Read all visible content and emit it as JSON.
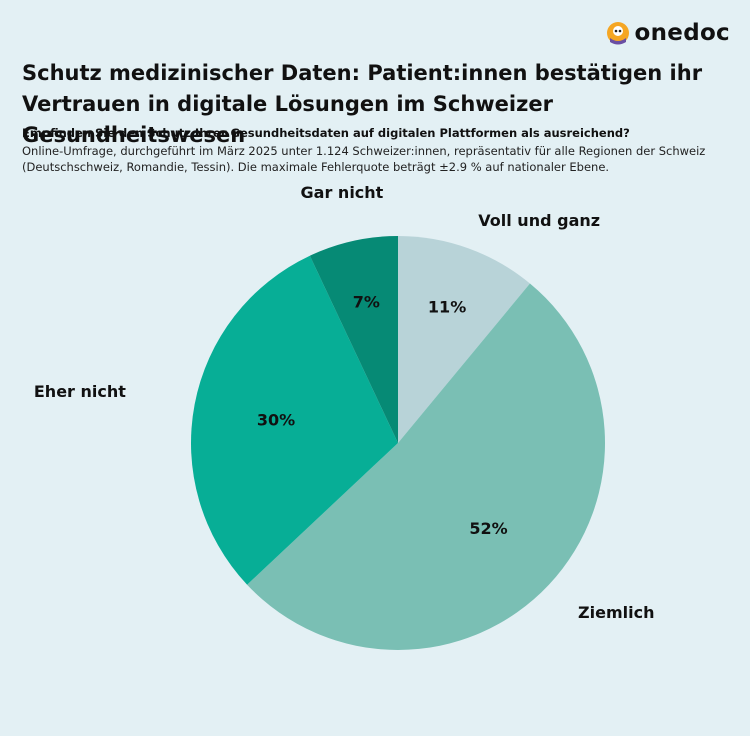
{
  "brand": {
    "name": "onedoc",
    "icon": "onedoc-mascot-icon",
    "colors": {
      "orange": "#f5a623",
      "purple": "#6a4fa3"
    }
  },
  "title": "Schutz medizinischer Daten: Patient:innen bestätigen ihr Vertrauen in digitale Lösungen im Schweizer Gesundheitswesen",
  "question": "Empfinden Sie den Schutz Ihrer Gesundheitsdaten auf digitalen Plattformen als ausreichend?",
  "note": "Online-Umfrage, durchgeführt im März 2025 unter 1.124 Schweizer:innen, repräsentativ für alle Regionen der Schweiz (Deutschschweiz, Romandie, Tessin). Die maximale Fehlerquote beträgt ±2.9 % auf nationaler Ebene.",
  "chart_data": {
    "type": "pie",
    "slices": [
      {
        "label": "Voll und ganz",
        "value": 11,
        "value_label": "11%",
        "color": "#b8d3d8"
      },
      {
        "label": "Ziemlich",
        "value": 52,
        "value_label": "52%",
        "color": "#7abfb4"
      },
      {
        "label": "Eher nicht",
        "value": 30,
        "value_label": "30%",
        "color": "#07ae96"
      },
      {
        "label": "Gar nicht",
        "value": 7,
        "value_label": "7%",
        "color": "#068a75"
      }
    ]
  }
}
